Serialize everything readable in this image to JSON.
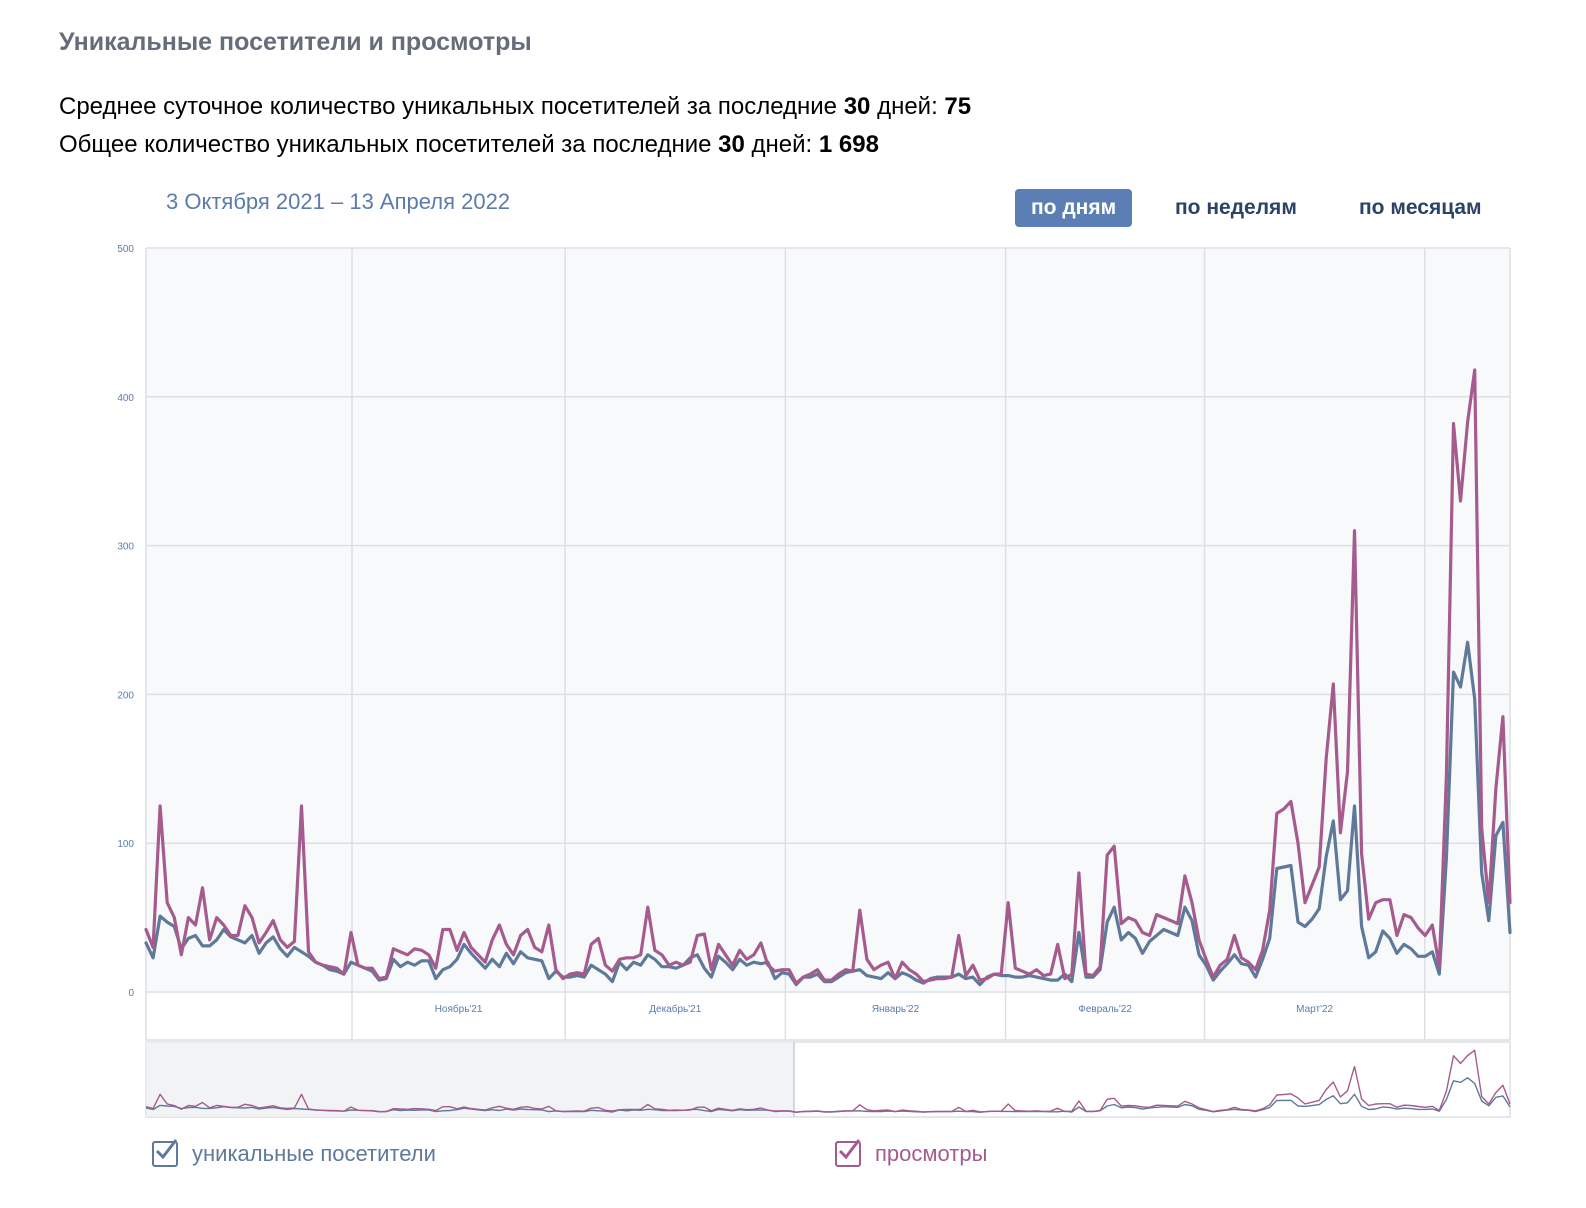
{
  "section_title": "Уникальные посетители и просмотры",
  "stats": {
    "avg": {
      "prefix": "Среднее суточное количество уникальных посетителей за последние ",
      "days": "30",
      "mid": " дней: ",
      "value": "75"
    },
    "total": {
      "prefix": "Общее количество уникальных посетителей за последние ",
      "days": "30",
      "mid": " дней: ",
      "value": "1 698"
    }
  },
  "date_range": "3 Октября 2021 – 13 Апреля 2022",
  "period_tabs": [
    {
      "label": "по дням",
      "active": true
    },
    {
      "label": "по неделям",
      "active": false
    },
    {
      "label": "по месяцам",
      "active": false
    }
  ],
  "legend": {
    "visitors_label": "уникальные посетители",
    "views_label": "просмотры"
  },
  "colors": {
    "visitors": "#5e7999",
    "views": "#a55b8e",
    "accent": "#5b7fb4",
    "grid": "#dcdfe4",
    "axis_label": "#5b7cab"
  },
  "chart_data": {
    "type": "line",
    "x_start": "2021-10-03",
    "x_end": "2022-04-13",
    "ylim": [
      0,
      500
    ],
    "yticks": [
      0,
      100,
      200,
      300,
      400,
      500
    ],
    "month_ticks": [
      {
        "date": "2021-11-01",
        "label": "Ноябрь'21"
      },
      {
        "date": "2021-12-01",
        "label": "Декабрь'21"
      },
      {
        "date": "2022-01-01",
        "label": "Январь'22"
      },
      {
        "date": "2022-02-01",
        "label": "Февраль'22"
      },
      {
        "date": "2022-03-01",
        "label": "Март'22"
      },
      {
        "date": "2022-04-01",
        "label": ""
      }
    ],
    "grid": true,
    "series": [
      {
        "name": "уникальные посетители",
        "values": [
          33,
          23,
          51,
          47,
          44,
          29,
          36,
          38,
          31,
          31,
          35,
          42,
          37,
          35,
          33,
          38,
          26,
          33,
          37,
          29,
          24,
          30,
          27,
          24,
          20,
          18,
          15,
          14,
          12,
          20,
          18,
          16,
          14,
          8,
          9,
          22,
          17,
          20,
          18,
          21,
          21,
          9,
          15,
          17,
          22,
          32,
          26,
          21,
          16,
          22,
          17,
          26,
          19,
          27,
          23,
          22,
          21,
          9,
          14,
          10,
          10,
          11,
          10,
          18,
          15,
          12,
          7,
          20,
          15,
          20,
          18,
          25,
          22,
          17,
          17,
          16,
          18,
          23,
          25,
          16,
          10,
          24,
          20,
          15,
          22,
          18,
          20,
          19,
          20,
          9,
          13,
          12,
          5,
          10,
          10,
          12,
          7,
          7,
          10,
          13,
          14,
          15,
          11,
          10,
          9,
          13,
          9,
          13,
          11,
          8,
          6,
          9,
          10,
          10,
          10,
          12,
          9,
          10,
          5,
          10,
          12,
          11,
          11,
          10,
          10,
          11,
          10,
          9,
          8,
          8,
          12,
          7,
          40,
          10,
          10,
          15,
          47,
          57,
          35,
          40,
          36,
          26,
          34,
          38,
          42,
          40,
          38,
          57,
          48,
          25,
          18,
          8,
          14,
          19,
          25,
          19,
          18,
          10,
          22,
          36,
          83,
          84,
          85,
          47,
          44,
          49,
          56,
          91,
          115,
          62,
          68,
          125,
          44,
          23,
          27,
          41,
          36,
          26,
          32,
          29,
          24,
          24,
          27,
          12,
          90,
          215,
          205,
          235,
          197,
          80,
          48,
          105,
          114,
          40
        ]
      },
      {
        "name": "просмотры",
        "values": [
          42,
          30,
          125,
          60,
          50,
          25,
          50,
          45,
          70,
          35,
          50,
          45,
          38,
          38,
          58,
          50,
          33,
          40,
          48,
          35,
          30,
          34,
          125,
          27,
          20,
          18,
          17,
          16,
          12,
          40,
          18,
          16,
          16,
          9,
          10,
          29,
          27,
          25,
          29,
          28,
          25,
          16,
          42,
          42,
          28,
          40,
          30,
          25,
          20,
          35,
          45,
          32,
          25,
          38,
          42,
          30,
          27,
          45,
          15,
          9,
          12,
          13,
          12,
          32,
          36,
          18,
          14,
          22,
          23,
          23,
          25,
          57,
          28,
          25,
          18,
          20,
          18,
          20,
          38,
          39,
          15,
          32,
          25,
          18,
          28,
          22,
          25,
          33,
          18,
          14,
          15,
          15,
          6,
          10,
          12,
          15,
          8,
          8,
          12,
          15,
          14,
          55,
          22,
          15,
          18,
          20,
          9,
          20,
          15,
          12,
          7,
          8,
          9,
          9,
          10,
          38,
          11,
          18,
          8,
          9,
          12,
          12,
          60,
          16,
          14,
          12,
          15,
          11,
          12,
          32,
          9,
          12,
          80,
          12,
          11,
          17,
          92,
          98,
          46,
          50,
          48,
          40,
          38,
          52,
          50,
          48,
          46,
          78,
          60,
          35,
          22,
          10,
          18,
          22,
          38,
          23,
          20,
          15,
          28,
          55,
          120,
          123,
          128,
          100,
          60,
          72,
          84,
          157,
          207,
          107,
          148,
          310,
          93,
          49,
          60,
          62,
          62,
          38,
          52,
          50,
          43,
          38,
          45,
          17,
          145,
          382,
          330,
          383,
          418,
          110,
          60,
          137,
          185,
          60
        ]
      }
    ]
  }
}
